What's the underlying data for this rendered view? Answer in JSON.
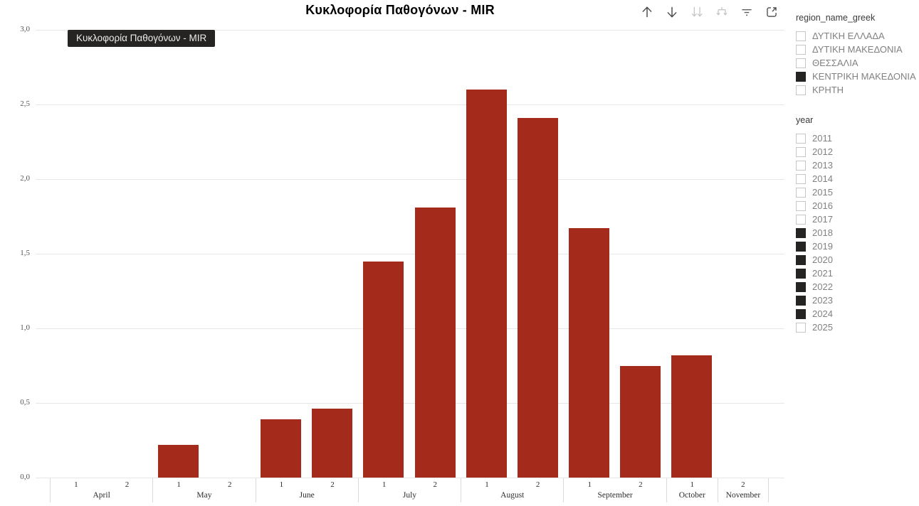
{
  "title": "Κυκλοφορία Παθογόνων - MIR",
  "tooltip": {
    "text": "Κυκλοφορία Παθογόνων - MIR"
  },
  "toolbar": {
    "icons": [
      {
        "name": "drill-up",
        "dimmed": false
      },
      {
        "name": "drill-down",
        "dimmed": false
      },
      {
        "name": "go-to-next-level",
        "dimmed": true
      },
      {
        "name": "expand-all-down",
        "dimmed": true
      },
      {
        "name": "filter",
        "dimmed": false
      },
      {
        "name": "focus-mode",
        "dimmed": false
      }
    ]
  },
  "chart_data": {
    "type": "bar",
    "title": "Κυκλοφορία Παθογόνων - MIR",
    "xlabel": "",
    "ylabel": "",
    "ylim": [
      0,
      3
    ],
    "grid": true,
    "bar_color": "#A42B1C",
    "y_ticks": [
      {
        "value": 0,
        "label": "0,0"
      },
      {
        "value": 0.5,
        "label": "0,5"
      },
      {
        "value": 1,
        "label": "1,0"
      },
      {
        "value": 1.5,
        "label": "1,5"
      },
      {
        "value": 2,
        "label": "2,0"
      },
      {
        "value": 2.5,
        "label": "2,5"
      },
      {
        "value": 3,
        "label": "3,0"
      }
    ],
    "groups": [
      {
        "month": "April",
        "slots": [
          {
            "label": "1",
            "value": 0
          },
          {
            "label": "2",
            "value": 0
          }
        ]
      },
      {
        "month": "May",
        "slots": [
          {
            "label": "1",
            "value": 0.22
          },
          {
            "label": "2",
            "value": 0
          }
        ]
      },
      {
        "month": "June",
        "slots": [
          {
            "label": "1",
            "value": 0.39
          },
          {
            "label": "2",
            "value": 0.46
          }
        ]
      },
      {
        "month": "July",
        "slots": [
          {
            "label": "1",
            "value": 1.45
          },
          {
            "label": "2",
            "value": 1.81
          }
        ]
      },
      {
        "month": "August",
        "slots": [
          {
            "label": "1",
            "value": 2.6
          },
          {
            "label": "2",
            "value": 2.41
          }
        ]
      },
      {
        "month": "September",
        "slots": [
          {
            "label": "1",
            "value": 1.67
          },
          {
            "label": "2",
            "value": 0.75
          }
        ]
      },
      {
        "month": "October",
        "slots": [
          {
            "label": "1",
            "value": 0.82
          }
        ]
      },
      {
        "month": "November",
        "slots": [
          {
            "label": "2",
            "value": 0
          }
        ]
      }
    ]
  },
  "filters": {
    "region": {
      "header": "region_name_greek",
      "items": [
        {
          "label": "ΔΥΤΙΚΗ ΕΛΛΑΔΑ",
          "checked": false
        },
        {
          "label": "ΔΥΤΙΚΗ ΜΑΚΕΔΟΝΙΑ",
          "checked": false
        },
        {
          "label": "ΘΕΣΣΑΛΙΑ",
          "checked": false
        },
        {
          "label": "ΚΕΝΤΡΙΚΗ ΜΑΚΕΔΟΝΙΑ",
          "checked": true
        },
        {
          "label": "ΚΡΗΤΗ",
          "checked": false
        }
      ]
    },
    "year": {
      "header": "year",
      "items": [
        {
          "label": "2011",
          "checked": false
        },
        {
          "label": "2012",
          "checked": false
        },
        {
          "label": "2013",
          "checked": false
        },
        {
          "label": "2014",
          "checked": false
        },
        {
          "label": "2015",
          "checked": false
        },
        {
          "label": "2016",
          "checked": false
        },
        {
          "label": "2017",
          "checked": false
        },
        {
          "label": "2018",
          "checked": true
        },
        {
          "label": "2019",
          "checked": true
        },
        {
          "label": "2020",
          "checked": true
        },
        {
          "label": "2021",
          "checked": true
        },
        {
          "label": "2022",
          "checked": true
        },
        {
          "label": "2023",
          "checked": true
        },
        {
          "label": "2024",
          "checked": true
        },
        {
          "label": "2025",
          "checked": false
        }
      ]
    }
  },
  "colors": {
    "bar": "#A42B1C",
    "gridline": "#E6E6E6",
    "tooltip_bg": "#252423",
    "tooltip_text": "#EDEBE9",
    "checked_box": "#252423"
  }
}
